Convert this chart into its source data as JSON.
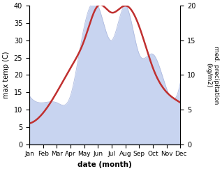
{
  "months": [
    "Jan",
    "Feb",
    "Mar",
    "Apr",
    "May",
    "Jun",
    "Jul",
    "Aug",
    "Sep",
    "Oct",
    "Nov",
    "Dec"
  ],
  "temperature": [
    6,
    9,
    15,
    22,
    30,
    40,
    38,
    40,
    34,
    22,
    15,
    12
  ],
  "precipitation": [
    7,
    6,
    6,
    7,
    17,
    20,
    15,
    20,
    13,
    13,
    8,
    9
  ],
  "temp_ylim": [
    0,
    40
  ],
  "precip_ylim": [
    0,
    20
  ],
  "temp_color": "#c03030",
  "precip_fill_color": "#c8d4f0",
  "precip_edge_color": "#b0bce0",
  "ylabel_left": "max temp (C)",
  "ylabel_right": "med. precipitation\n(kg/m2)",
  "xlabel": "date (month)",
  "temp_linewidth": 1.8
}
